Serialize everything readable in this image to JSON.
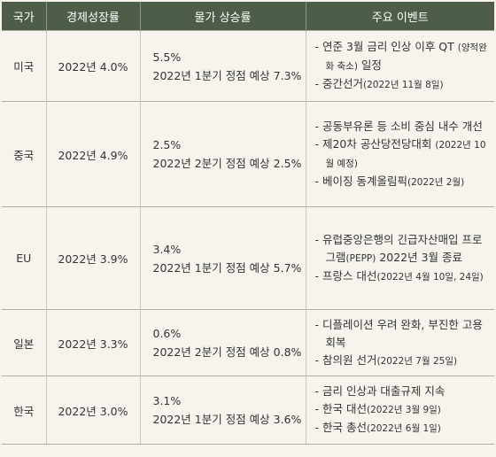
{
  "table": {
    "header": [
      "국가",
      "경제성장률",
      "물가 상승률",
      "주요 이벤트"
    ],
    "rows": [
      {
        "country": "미국",
        "growth": "2022년 4.0%",
        "inflation": [
          "5.5%",
          "2022년 1분기 정점 예상 7.3%"
        ],
        "events": [
          "연준 3월 금리 인상 이후 QT (양적완화 축소) 일정",
          "중간선거(2022년 11월 8일)"
        ]
      },
      {
        "country": "중국",
        "growth": "2022년 4.9%",
        "inflation": [
          "2.5%",
          "2022년 2분기 정점 예상 2.5%"
        ],
        "events": [
          "공동부유론 등 소비 중심 내수 개선",
          "제20차 공산당전당대회 (2022년 10월 예정)",
          "베이징 동계올림픽(2022년 2월)"
        ]
      },
      {
        "country": "EU",
        "growth": "2022년 3.9%",
        "inflation": [
          "3.4%",
          "2022년 1분기 정점 예상 5.7%"
        ],
        "events": [
          "유럽중앙은행의 긴급자산매입 프로그램(PEPP) 2022년 3월 종료",
          "프랑스 대선(2022년 4월 10일, 24일)"
        ]
      },
      {
        "country": "일본",
        "growth": "2022년 3.3%",
        "inflation": [
          "0.6%",
          "2022년 2분기 정점 예상 0.8%"
        ],
        "events": [
          "디플레이션 우려 완화, 부진한 고용 회복",
          "참의원 선거(2022년 7월 25일)"
        ]
      },
      {
        "country": "한국",
        "growth": "2022년 3.0%",
        "inflation": [
          "3.1%",
          "2022년 1분기 정점 예상 3.6%"
        ],
        "events": [
          "금리 인상과 대출규제 지속",
          "한국 대선(2022년 3월 9일)",
          "한국 총선(2022년 6월 1일)"
        ]
      }
    ]
  }
}
